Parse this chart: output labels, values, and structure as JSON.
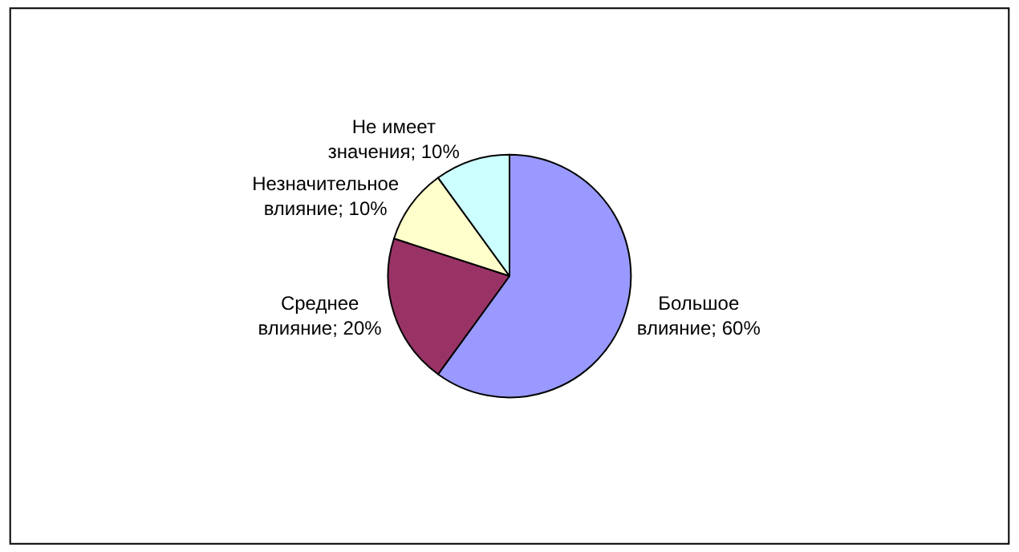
{
  "chart_data": {
    "type": "pie",
    "categories": [
      "Большое влияние",
      "Среднее влияние",
      "Незначительное влияние",
      "Не имеет значения"
    ],
    "values": [
      60,
      20,
      10,
      10
    ],
    "value_labels": [
      "60%",
      "20%",
      "10%",
      "10%"
    ],
    "colors": [
      "#9999ff",
      "#993366",
      "#ffffcc",
      "#ccffff"
    ],
    "legend": false
  }
}
